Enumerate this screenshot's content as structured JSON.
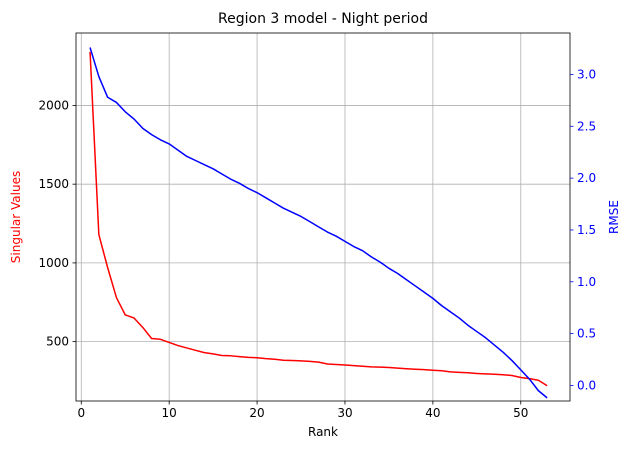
{
  "chart_data": {
    "type": "line",
    "title": "Region 3 model - Night period",
    "xlabel": "Rank",
    "ylabel_left": "Singular Values",
    "ylabel_right": "RMSE",
    "xlim": [
      -0.6,
      55.6
    ],
    "ylim_left": [
      123,
      2460
    ],
    "ylim_right": [
      -0.15,
      3.4
    ],
    "x_ticks": [
      0,
      10,
      20,
      30,
      40,
      50
    ],
    "y_ticks_left": [
      500,
      1000,
      1500,
      2000
    ],
    "y_ticks_right": [
      0.0,
      0.5,
      1.0,
      1.5,
      2.0,
      2.5,
      3.0
    ],
    "grid": true,
    "colors": {
      "left_axis": "#ff0000",
      "right_axis": "#0000ff"
    },
    "series": [
      {
        "name": "Singular Values",
        "axis": "left",
        "color": "#ff0000",
        "x": [
          1,
          2,
          3,
          4,
          5,
          6,
          7,
          8,
          9,
          10,
          11,
          12,
          13,
          14,
          15,
          16,
          17,
          18,
          19,
          20,
          21,
          22,
          23,
          24,
          25,
          26,
          27,
          28,
          29,
          30,
          31,
          32,
          33,
          34,
          35,
          36,
          37,
          38,
          39,
          40,
          41,
          42,
          43,
          44,
          45,
          46,
          47,
          48,
          49,
          50,
          51,
          52,
          53
        ],
        "values": [
          2340,
          1180,
          970,
          780,
          670,
          650,
          590,
          520,
          515,
          495,
          475,
          460,
          445,
          430,
          422,
          412,
          410,
          405,
          400,
          398,
          392,
          388,
          382,
          380,
          378,
          375,
          370,
          358,
          355,
          352,
          348,
          344,
          340,
          338,
          336,
          332,
          328,
          325,
          322,
          318,
          315,
          308,
          305,
          302,
          298,
          295,
          293,
          290,
          285,
          272,
          265,
          255,
          220
        ]
      },
      {
        "name": "RMSE",
        "axis": "right",
        "color": "#0000ff",
        "x": [
          1,
          2,
          3,
          4,
          5,
          6,
          7,
          8,
          9,
          10,
          11,
          12,
          13,
          14,
          15,
          16,
          17,
          18,
          19,
          20,
          21,
          22,
          23,
          24,
          25,
          26,
          27,
          28,
          29,
          30,
          31,
          32,
          33,
          34,
          35,
          36,
          37,
          38,
          39,
          40,
          41,
          42,
          43,
          44,
          45,
          46,
          47,
          48,
          49,
          50,
          51,
          52,
          53
        ],
        "values": [
          3.26,
          2.98,
          2.78,
          2.73,
          2.64,
          2.57,
          2.48,
          2.42,
          2.37,
          2.33,
          2.27,
          2.21,
          2.17,
          2.13,
          2.09,
          2.04,
          1.99,
          1.95,
          1.9,
          1.86,
          1.81,
          1.76,
          1.71,
          1.67,
          1.63,
          1.58,
          1.53,
          1.48,
          1.44,
          1.39,
          1.34,
          1.3,
          1.24,
          1.19,
          1.13,
          1.08,
          1.02,
          0.96,
          0.9,
          0.84,
          0.77,
          0.71,
          0.65,
          0.58,
          0.52,
          0.46,
          0.39,
          0.32,
          0.24,
          0.15,
          0.06,
          -0.05,
          -0.12
        ]
      }
    ]
  }
}
